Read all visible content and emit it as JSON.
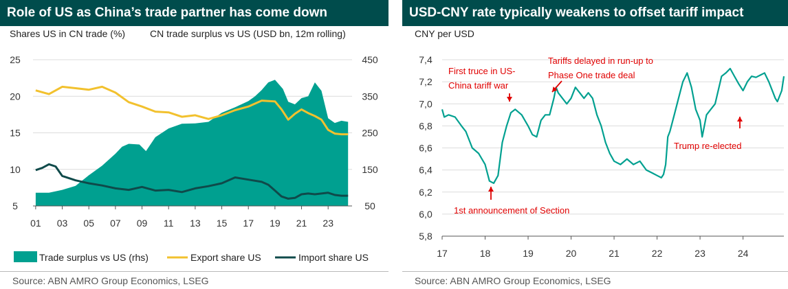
{
  "left": {
    "title": "Role of US as China’s trade partner has come down",
    "source": "Source: ABN AMRO Group Economics, LSEG",
    "chart_data": {
      "type": "line",
      "ylabel": "Shares US in CN trade (%)",
      "y2label": "CN trade surplus vs US (USD bn, 12m rolling)",
      "x_ticks": [
        "01",
        "03",
        "05",
        "07",
        "09",
        "11",
        "13",
        "15",
        "17",
        "19",
        "21",
        "23"
      ],
      "x_tick_values": [
        2001,
        2003,
        2005,
        2007,
        2009,
        2011,
        2013,
        2015,
        2017,
        2019,
        2021,
        2023
      ],
      "xlim": [
        2000.8,
        2024.8
      ],
      "ylim": [
        5,
        25
      ],
      "y_ticks": [
        5,
        10,
        15,
        20,
        25
      ],
      "y2lim": [
        50,
        450
      ],
      "y2_ticks": [
        50,
        150,
        250,
        350,
        450
      ],
      "grid": "horizontal",
      "legend_position": "bottom",
      "series": [
        {
          "name": "Trade surplus vs US (rhs)",
          "axis": "right",
          "style": "area",
          "color": "#00A090",
          "x": [
            2001,
            2002,
            2003,
            2004,
            2005,
            2006,
            2007,
            2007.5,
            2008,
            2008.8,
            2009.3,
            2010,
            2011,
            2012,
            2013,
            2014,
            2015,
            2016,
            2017,
            2017.5,
            2018,
            2018.5,
            2019,
            2019.6,
            2020,
            2020.5,
            2021,
            2021.5,
            2022,
            2022.5,
            2023,
            2023.5,
            2024,
            2024.5
          ],
          "values": [
            86,
            86,
            94,
            105,
            134,
            160,
            193,
            212,
            220,
            218,
            200,
            238,
            262,
            275,
            276,
            280,
            305,
            320,
            337,
            350,
            367,
            388,
            395,
            370,
            335,
            328,
            345,
            350,
            388,
            365,
            290,
            277,
            283,
            280
          ]
        },
        {
          "name": "Export share US",
          "axis": "left",
          "style": "line",
          "color": "#F2C12E",
          "x": [
            2001,
            2002,
            2003,
            2004,
            2005,
            2006,
            2007,
            2008,
            2009,
            2010,
            2011,
            2012,
            2013,
            2014,
            2015,
            2016,
            2017,
            2018,
            2019,
            2019.5,
            2020,
            2020.5,
            2021,
            2021.5,
            2022,
            2022.5,
            2023,
            2023.5,
            2024,
            2024.5
          ],
          "values": [
            20.8,
            20.3,
            21.3,
            21.1,
            20.9,
            21.3,
            20.5,
            19.2,
            18.6,
            17.9,
            17.8,
            17.2,
            17.4,
            16.9,
            17.4,
            18.1,
            18.6,
            19.4,
            19.3,
            18.2,
            16.8,
            17.6,
            18.2,
            17.7,
            17.3,
            16.8,
            15.4,
            14.9,
            14.8,
            14.8
          ]
        },
        {
          "name": "Import share US",
          "axis": "left",
          "style": "line",
          "color": "#0F4A4A",
          "x": [
            2001,
            2001.5,
            2002,
            2002.5,
            2003,
            2004,
            2005,
            2006,
            2007,
            2008,
            2009,
            2010,
            2011,
            2012,
            2013,
            2014,
            2015,
            2016,
            2017,
            2018,
            2018.5,
            2019,
            2019.5,
            2020,
            2020.5,
            2021,
            2021.5,
            2022,
            2023,
            2023.5,
            2024,
            2024.5
          ],
          "values": [
            9.9,
            10.2,
            10.7,
            10.4,
            9.1,
            8.5,
            8.1,
            7.8,
            7.4,
            7.2,
            7.6,
            7.1,
            7.2,
            6.9,
            7.4,
            7.7,
            8.1,
            8.9,
            8.6,
            8.3,
            7.9,
            7.1,
            6.3,
            6.0,
            6.1,
            6.6,
            6.7,
            6.6,
            6.8,
            6.5,
            6.4,
            6.4
          ]
        }
      ]
    }
  },
  "right": {
    "title": "USD-CNY rate typically weakens to offset tariff impact",
    "source": "Source: ABN AMRO Group Economics, LSEG",
    "chart_data": {
      "type": "line",
      "ylabel": "CNY per USD",
      "x_ticks": [
        "17",
        "18",
        "19",
        "20",
        "21",
        "22",
        "23",
        "24"
      ],
      "x_tick_values": [
        2017,
        2018,
        2019,
        2020,
        2021,
        2022,
        2023,
        2024
      ],
      "xlim": [
        2017,
        2024.95
      ],
      "ylim": [
        5.8,
        7.4
      ],
      "y_ticks": [
        "5,8",
        "6,0",
        "6,2",
        "6,4",
        "6,6",
        "6,8",
        "7,0",
        "7,2",
        "7,4"
      ],
      "y_tick_values": [
        5.8,
        6.0,
        6.2,
        6.4,
        6.6,
        6.8,
        7.0,
        7.2,
        7.4
      ],
      "grid": "horizontal",
      "series": [
        {
          "color": "#00A090",
          "x": [
            2017,
            2017.05,
            2017.15,
            2017.3,
            2017.45,
            2017.55,
            2017.7,
            2017.85,
            2018,
            2018.1,
            2018.2,
            2018.3,
            2018.4,
            2018.5,
            2018.6,
            2018.7,
            2018.85,
            2019,
            2019.1,
            2019.2,
            2019.3,
            2019.4,
            2019.5,
            2019.6,
            2019.65,
            2019.7,
            2019.8,
            2019.9,
            2020,
            2020.1,
            2020.2,
            2020.3,
            2020.4,
            2020.5,
            2020.6,
            2020.7,
            2020.8,
            2020.9,
            2021,
            2021.15,
            2021.3,
            2021.45,
            2021.6,
            2021.75,
            2021.9,
            2022,
            2022.1,
            2022.15,
            2022.2,
            2022.25,
            2022.3,
            2022.4,
            2022.5,
            2022.6,
            2022.7,
            2022.8,
            2022.9,
            2023,
            2023.05,
            2023.15,
            2023.25,
            2023.35,
            2023.5,
            2023.6,
            2023.7,
            2023.8,
            2023.9,
            2024,
            2024.1,
            2024.2,
            2024.3,
            2024.4,
            2024.5,
            2024.6,
            2024.7,
            2024.75,
            2024.8,
            2024.9,
            2024.95
          ],
          "values": [
            6.95,
            6.88,
            6.9,
            6.88,
            6.8,
            6.75,
            6.6,
            6.55,
            6.45,
            6.3,
            6.28,
            6.35,
            6.65,
            6.8,
            6.92,
            6.95,
            6.9,
            6.8,
            6.72,
            6.7,
            6.85,
            6.9,
            6.9,
            7.05,
            7.15,
            7.1,
            7.05,
            7.0,
            7.05,
            7.15,
            7.1,
            7.05,
            7.1,
            7.05,
            6.9,
            6.8,
            6.65,
            6.55,
            6.48,
            6.45,
            6.5,
            6.45,
            6.48,
            6.4,
            6.37,
            6.35,
            6.33,
            6.36,
            6.45,
            6.7,
            6.75,
            6.9,
            7.05,
            7.2,
            7.28,
            7.15,
            6.95,
            6.85,
            6.7,
            6.9,
            6.95,
            7.0,
            7.25,
            7.28,
            7.32,
            7.25,
            7.18,
            7.12,
            7.2,
            7.25,
            7.24,
            7.26,
            7.28,
            7.2,
            7.1,
            7.05,
            7.02,
            7.12,
            7.25
          ]
        }
      ],
      "annotations": [
        {
          "text": "First truce in US-",
          "text2": "China tariff war",
          "color": "#E00000"
        },
        {
          "text": "Tariffs delayed in run-up to",
          "text2": "Phase One trade deal",
          "color": "#E00000"
        },
        {
          "text": "1st announcement of Section",
          "color": "#E00000"
        },
        {
          "text": "Trump re-elected",
          "color": "#E00000"
        }
      ]
    }
  }
}
